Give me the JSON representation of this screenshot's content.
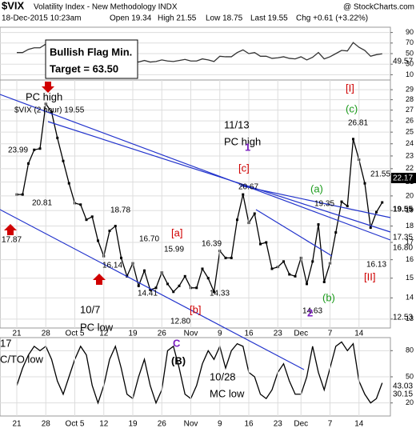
{
  "chart_data": {
    "type": "line",
    "title": "$VIX",
    "subtitle": "Volatility Index - New Methodology INDX",
    "source": "@ StockCharts.com",
    "quote": [
      "18-Dec-2015 10:23am",
      "Open 19.34",
      "High 21.55",
      "Low 18.75",
      "Last 19.55",
      "Chg +0.61 (+3.22%)"
    ],
    "legend": "$VIX (2 hour) 19.55",
    "categories": [
      "21",
      null,
      null,
      null,
      null,
      "28",
      null,
      null,
      null,
      null,
      "Oct 5",
      null,
      null,
      null,
      null,
      "12",
      null,
      null,
      null,
      null,
      "19",
      null,
      null,
      null,
      null,
      "26",
      null,
      null,
      null,
      null,
      "Nov",
      null,
      null,
      null,
      null,
      "9",
      null,
      null,
      null,
      null,
      "16",
      null,
      null,
      null,
      null,
      "23",
      null,
      null,
      null,
      "Dec",
      null,
      null,
      null,
      null,
      "7",
      null,
      null,
      null,
      null,
      "14",
      null,
      null,
      null,
      null
    ],
    "series": [
      {
        "color": "#000000",
        "values": [
          20.1,
          20.1,
          22.4,
          23.5,
          23.6,
          27.6,
          26.8,
          24.5,
          22.6,
          20.9,
          19.5,
          19.4,
          18.4,
          18.6,
          17.1,
          16.2,
          17.7,
          18.0,
          16.1,
          15.1,
          15.8,
          14.6,
          15.4,
          14.4,
          14.5,
          15.3,
          14.7,
          14.3,
          14.6,
          15.1,
          14.5,
          14.5,
          15.5,
          15.0,
          14.3,
          16.5,
          16.1,
          16.1,
          18.4,
          20.1,
          18.2,
          18.8,
          16.9,
          17.0,
          15.5,
          15.6,
          15.9,
          15.2,
          15.1,
          16.1,
          14.7,
          15.9,
          18.1,
          14.8,
          15.8,
          17.6,
          19.6,
          19.3,
          24.4,
          22.7,
          20.9,
          17.9,
          18.9,
          19.55
        ]
      }
    ],
    "ylim": [
      12.6,
      30
    ],
    "log_scale": true,
    "grid": true,
    "yticks": [
      13,
      14,
      15,
      16,
      17,
      18,
      19,
      20,
      21,
      22,
      23,
      24,
      25,
      26,
      27,
      28,
      29
    ],
    "price_labels": [
      "22.17",
      "19.55",
      "17.35",
      "16.80",
      "12.53"
    ],
    "annotations": {
      "flag": [
        "Bullish Flag Min.",
        "Target = 63.50"
      ],
      "pc_high_left": "PC high",
      "pc_high_mid": [
        "11/13",
        "PC high"
      ],
      "pc_low": [
        "10/7",
        "PC low"
      ],
      "mc_low": [
        "10/28",
        "MC low"
      ],
      "cto_low": [
        "17",
        "C/TO low"
      ],
      "prices": [
        "23.99",
        "20.81",
        "17.87",
        "18.78",
        "16.70",
        "16.14",
        "15.99",
        "16.39",
        "14.41",
        "14.33",
        "12.80",
        "20.67",
        "19.35",
        "14.63",
        "26.81",
        "21.55",
        "16.13"
      ],
      "waves_red": [
        "[a]",
        "[b]",
        "[c]",
        "[I]",
        "[II]"
      ],
      "waves_green": [
        "(a)",
        "(b)",
        "(c)"
      ],
      "waves_purple": [
        "1",
        "2",
        "C",
        "(B)"
      ]
    },
    "rsi": {
      "color": "#333333",
      "ylim": [
        0,
        100
      ],
      "yticks": [
        10,
        30,
        50,
        70,
        90
      ],
      "label": "49.57",
      "values": [
        52,
        52,
        58,
        61,
        61,
        68,
        66,
        58,
        52,
        47,
        45,
        45,
        42,
        43,
        38,
        36,
        42,
        43,
        38,
        35,
        38,
        34,
        37,
        34,
        35,
        38,
        36,
        35,
        37,
        39,
        36,
        36,
        40,
        38,
        35,
        45,
        44,
        44,
        52,
        57,
        50,
        52,
        45,
        45,
        41,
        42,
        44,
        41,
        40,
        44,
        38,
        43,
        52,
        40,
        44,
        50,
        56,
        55,
        71,
        62,
        56,
        45,
        48,
        49.57
      ]
    },
    "stoch": {
      "color": "#000000",
      "ylim": [
        5,
        95
      ],
      "yticks": [
        20,
        50,
        80
      ],
      "labels": [
        "43.03",
        "30.15"
      ],
      "values": [
        40,
        60,
        75,
        85,
        80,
        85,
        70,
        45,
        30,
        50,
        70,
        85,
        75,
        40,
        20,
        40,
        70,
        85,
        60,
        30,
        25,
        50,
        70,
        40,
        20,
        35,
        80,
        85,
        60,
        30,
        25,
        40,
        65,
        80,
        70,
        85,
        60,
        80,
        88,
        85,
        55,
        50,
        30,
        25,
        35,
        55,
        65,
        45,
        30,
        30,
        50,
        85,
        55,
        35,
        60,
        85,
        90,
        80,
        88,
        45,
        30,
        20,
        25,
        43.03
      ]
    }
  }
}
